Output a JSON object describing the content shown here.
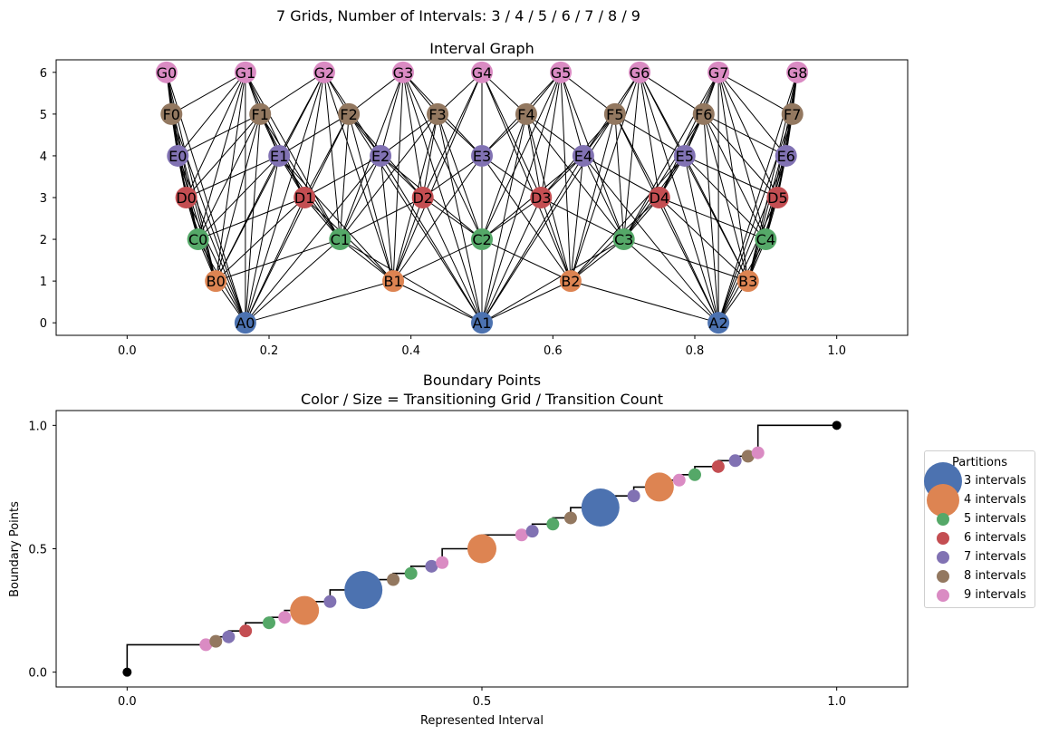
{
  "suptitle": "7 Grids, Number of Intervals: 3 / 4 / 5 / 6 / 7 / 8 / 9",
  "colors": {
    "3": "#4c72b0",
    "4": "#dd8452",
    "5": "#55a868",
    "6": "#c44e52",
    "7": "#8172b3",
    "8": "#937860",
    "9": "#da8bc3"
  },
  "chart_data": [
    {
      "type": "graph",
      "title": "Interval Graph",
      "xlim": [
        -0.1,
        1.1
      ],
      "ylim": [
        -0.3,
        6.3
      ],
      "xticks": [
        0.0,
        0.2,
        0.4,
        0.6,
        0.8,
        1.0
      ],
      "xtick_labels": [
        "0.0",
        "0.2",
        "0.4",
        "0.6",
        "0.8",
        "1.0"
      ],
      "yticks": [
        0,
        1,
        2,
        3,
        4,
        5,
        6
      ],
      "ytick_labels": [
        "0",
        "1",
        "2",
        "3",
        "4",
        "5",
        "6"
      ],
      "levels": [
        {
          "prefix": "A",
          "n": 3,
          "y": 0
        },
        {
          "prefix": "B",
          "n": 4,
          "y": 1
        },
        {
          "prefix": "C",
          "n": 5,
          "y": 2
        },
        {
          "prefix": "D",
          "n": 6,
          "y": 3
        },
        {
          "prefix": "E",
          "n": 7,
          "y": 4
        },
        {
          "prefix": "F",
          "n": 8,
          "y": 5
        },
        {
          "prefix": "G",
          "n": 9,
          "y": 6
        }
      ],
      "edges": "connect nodes whose intervals overlap"
    },
    {
      "type": "scatter",
      "title": "Boundary Points\nColor / Size = Transitioning Grid / Transition Count",
      "xlabel": "Represented Interval",
      "ylabel": "Boundary Points",
      "xlim": [
        -0.1,
        1.1
      ],
      "ylim": [
        -0.06,
        1.06
      ],
      "xticks": [
        0.0,
        0.5,
        1.0
      ],
      "xtick_labels": [
        "0.0",
        "0.5",
        "1.0"
      ],
      "yticks": [
        0.0,
        0.5,
        1.0
      ],
      "ytick_labels": [
        "0.0",
        "0.5",
        "1.0"
      ],
      "legend": {
        "title": "Partitions",
        "location": "right-outside",
        "entries": [
          {
            "label": "3 intervals",
            "n": 3
          },
          {
            "label": "4 intervals",
            "n": 4
          },
          {
            "label": "5 intervals",
            "n": 5
          },
          {
            "label": "6 intervals",
            "n": 6
          },
          {
            "label": "7 intervals",
            "n": 7
          },
          {
            "label": "8 intervals",
            "n": 8
          },
          {
            "label": "9 intervals",
            "n": 9
          }
        ]
      },
      "endpoints": [
        [
          0,
          0
        ],
        [
          1,
          1
        ]
      ],
      "points": [
        {
          "x": 0.111,
          "y": 0.111,
          "n": 9
        },
        {
          "x": 0.125,
          "y": 0.125,
          "n": 8
        },
        {
          "x": 0.143,
          "y": 0.143,
          "n": 7
        },
        {
          "x": 0.167,
          "y": 0.167,
          "n": 6
        },
        {
          "x": 0.2,
          "y": 0.2,
          "n": 5
        },
        {
          "x": 0.222,
          "y": 0.222,
          "n": 9
        },
        {
          "x": 0.25,
          "y": 0.25,
          "n": 4
        },
        {
          "x": 0.286,
          "y": 0.286,
          "n": 7
        },
        {
          "x": 0.333,
          "y": 0.333,
          "n": 3
        },
        {
          "x": 0.375,
          "y": 0.375,
          "n": 8
        },
        {
          "x": 0.4,
          "y": 0.4,
          "n": 5
        },
        {
          "x": 0.429,
          "y": 0.429,
          "n": 7
        },
        {
          "x": 0.444,
          "y": 0.444,
          "n": 9
        },
        {
          "x": 0.5,
          "y": 0.5,
          "n": 4
        },
        {
          "x": 0.556,
          "y": 0.556,
          "n": 9
        },
        {
          "x": 0.571,
          "y": 0.571,
          "n": 7
        },
        {
          "x": 0.6,
          "y": 0.6,
          "n": 5
        },
        {
          "x": 0.625,
          "y": 0.625,
          "n": 8
        },
        {
          "x": 0.667,
          "y": 0.667,
          "n": 3
        },
        {
          "x": 0.714,
          "y": 0.714,
          "n": 7
        },
        {
          "x": 0.75,
          "y": 0.75,
          "n": 4
        },
        {
          "x": 0.778,
          "y": 0.778,
          "n": 9
        },
        {
          "x": 0.8,
          "y": 0.8,
          "n": 5
        },
        {
          "x": 0.833,
          "y": 0.833,
          "n": 6
        },
        {
          "x": 0.857,
          "y": 0.857,
          "n": 7
        },
        {
          "x": 0.875,
          "y": 0.875,
          "n": 8
        },
        {
          "x": 0.889,
          "y": 0.889,
          "n": 9
        }
      ]
    }
  ]
}
